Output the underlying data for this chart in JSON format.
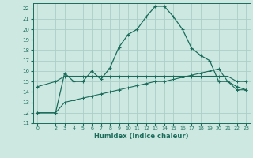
{
  "xlabel": "Humidex (Indice chaleur)",
  "bg_color": "#cce8e0",
  "grid_color": "#aacfc8",
  "line_color": "#1a6b5a",
  "xlim": [
    -0.5,
    23.5
  ],
  "ylim": [
    11,
    22.5
  ],
  "xticks": [
    0,
    2,
    3,
    4,
    5,
    6,
    7,
    8,
    9,
    10,
    11,
    12,
    13,
    14,
    15,
    16,
    17,
    18,
    19,
    20,
    21,
    22,
    23
  ],
  "yticks": [
    11,
    12,
    13,
    14,
    15,
    16,
    17,
    18,
    19,
    20,
    21,
    22
  ],
  "line1_x": [
    0,
    2,
    3,
    4,
    5,
    6,
    7,
    8,
    9,
    10,
    11,
    12,
    13,
    14,
    15,
    16,
    17,
    18,
    19,
    20,
    21,
    22,
    23
  ],
  "line1_y": [
    12,
    12,
    15.8,
    15.0,
    15.0,
    16.0,
    15.2,
    16.3,
    18.3,
    19.5,
    20.0,
    21.2,
    22.2,
    22.2,
    21.2,
    20.0,
    18.2,
    17.5,
    17.0,
    15.0,
    15.0,
    14.5,
    14.2
  ],
  "line2_x": [
    0,
    2,
    3,
    4,
    5,
    6,
    7,
    8,
    9,
    10,
    11,
    12,
    13,
    14,
    15,
    16,
    17,
    18,
    19,
    20,
    21,
    22,
    23
  ],
  "line2_y": [
    14.5,
    15.0,
    15.5,
    15.5,
    15.5,
    15.5,
    15.5,
    15.5,
    15.5,
    15.5,
    15.5,
    15.5,
    15.5,
    15.5,
    15.5,
    15.5,
    15.5,
    15.5,
    15.5,
    15.5,
    15.5,
    15.0,
    15.0
  ],
  "line3_x": [
    0,
    2,
    3,
    4,
    5,
    6,
    7,
    8,
    9,
    10,
    11,
    12,
    13,
    14,
    15,
    16,
    17,
    18,
    19,
    20,
    21,
    22,
    23
  ],
  "line3_y": [
    12.0,
    12.0,
    13.0,
    13.2,
    13.4,
    13.6,
    13.8,
    14.0,
    14.2,
    14.4,
    14.6,
    14.8,
    15.0,
    15.0,
    15.2,
    15.4,
    15.6,
    15.8,
    16.0,
    16.2,
    15.0,
    14.2,
    14.2
  ]
}
